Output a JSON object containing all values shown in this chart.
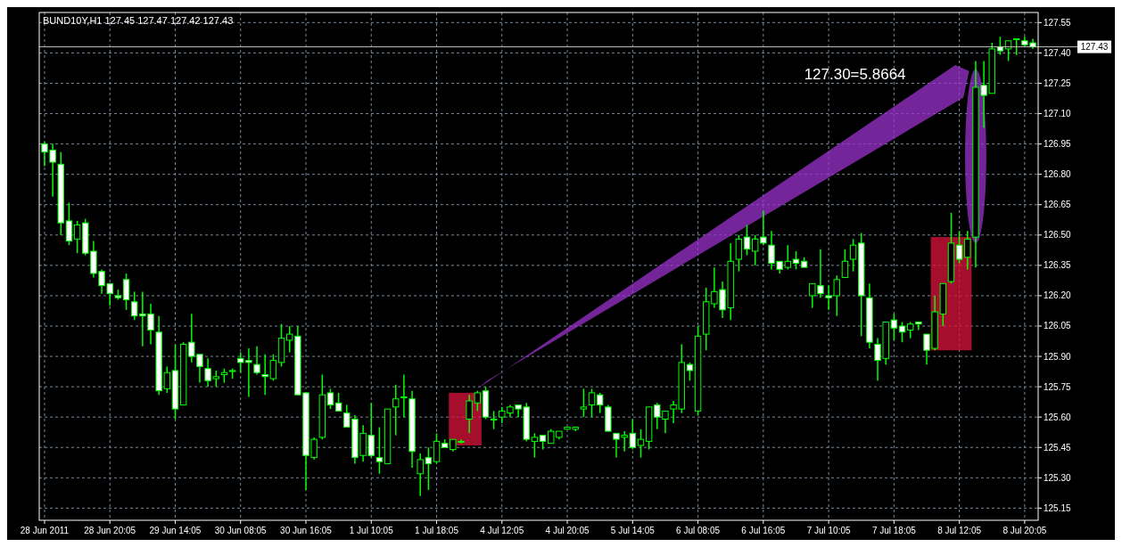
{
  "chart_data": {
    "type": "candlestick",
    "title": "BUND10Y,H1  127.45 127.47 127.42 127.43",
    "categories": [
      "28 Jun 2011",
      null,
      null,
      null,
      null,
      null,
      null,
      null,
      "28 Jun 20:05",
      null,
      null,
      null,
      null,
      null,
      null,
      null,
      "29 Jun 14:05",
      null,
      null,
      null,
      null,
      null,
      null,
      null,
      "30 Jun 08:05",
      null,
      null,
      null,
      null,
      null,
      null,
      null,
      "30 Jun 16:05",
      null,
      null,
      null,
      null,
      null,
      null,
      null,
      "1 Jul 10:05",
      null,
      null,
      null,
      null,
      null,
      null,
      null,
      "1 Jul 18:05",
      null,
      null,
      null,
      null,
      null,
      null,
      null,
      "4 Jul 12:05",
      null,
      null,
      null,
      null,
      null,
      null,
      null,
      "4 Jul 20:05",
      null,
      null,
      null,
      null,
      null,
      null,
      null,
      "5 Jul 14:05",
      null,
      null,
      null,
      null,
      null,
      null,
      null,
      "6 Jul 08:05",
      null,
      null,
      null,
      null,
      null,
      null,
      null,
      "6 Jul 16:05",
      null,
      null,
      null,
      null,
      null,
      null,
      null,
      "7 Jul 10:05",
      null,
      null,
      null,
      null,
      null,
      null,
      null,
      "7 Jul 18:05",
      null,
      null,
      null,
      null,
      null,
      null,
      null,
      "8 Jul 12:05",
      null,
      null,
      null,
      null,
      null,
      null,
      null,
      "8 Jul 20:05",
      null
    ],
    "series": [
      {
        "color": "#00ff00",
        "ohlc": [
          [
            126.95,
            126.96,
            126.84,
            126.91
          ],
          [
            126.92,
            126.95,
            126.69,
            126.86
          ],
          [
            126.85,
            126.91,
            126.5,
            126.56
          ],
          [
            126.57,
            126.66,
            126.45,
            126.47
          ],
          [
            126.48,
            126.57,
            126.41,
            126.55
          ],
          [
            126.56,
            126.58,
            126.4,
            126.41
          ],
          [
            126.42,
            126.47,
            126.29,
            126.31
          ],
          [
            126.32,
            126.33,
            126.21,
            126.25
          ],
          [
            126.26,
            126.26,
            126.15,
            126.21
          ],
          [
            126.2,
            126.23,
            126.18,
            126.19
          ],
          [
            126.28,
            126.31,
            126.13,
            126.18
          ],
          [
            126.17,
            126.22,
            126.08,
            126.1
          ],
          [
            126.11,
            126.22,
            125.95,
            126.1
          ],
          [
            126.11,
            126.16,
            125.96,
            126.03
          ],
          [
            126.02,
            126.1,
            125.71,
            125.73
          ],
          [
            125.74,
            125.85,
            125.72,
            125.82
          ],
          [
            125.83,
            125.96,
            125.59,
            125.64
          ],
          [
            125.66,
            125.97,
            125.66,
            125.96
          ],
          [
            125.97,
            126.11,
            125.87,
            125.9
          ],
          [
            125.91,
            125.91,
            125.77,
            125.85
          ],
          [
            125.84,
            125.89,
            125.75,
            125.78
          ],
          [
            125.79,
            125.83,
            125.75,
            125.8
          ],
          [
            125.81,
            125.84,
            125.77,
            125.82
          ],
          [
            125.83,
            125.84,
            125.79,
            125.83
          ],
          [
            125.89,
            125.92,
            125.82,
            125.87
          ],
          [
            125.88,
            125.94,
            125.7,
            125.87
          ],
          [
            125.86,
            125.95,
            125.81,
            125.82
          ],
          [
            125.81,
            125.91,
            125.71,
            125.8
          ],
          [
            125.79,
            125.91,
            125.78,
            125.88
          ],
          [
            125.87,
            126.06,
            125.85,
            125.99
          ],
          [
            125.98,
            126.05,
            125.92,
            126.01
          ],
          [
            126.0,
            126.05,
            125.71,
            125.71
          ],
          [
            125.72,
            125.72,
            125.24,
            125.41
          ],
          [
            125.4,
            125.5,
            125.39,
            125.49
          ],
          [
            125.5,
            125.81,
            125.49,
            125.71
          ],
          [
            125.72,
            125.74,
            125.64,
            125.66
          ],
          [
            125.67,
            125.72,
            125.63,
            125.63
          ],
          [
            125.62,
            125.66,
            125.55,
            125.55
          ],
          [
            125.59,
            125.61,
            125.37,
            125.4
          ],
          [
            125.41,
            125.56,
            125.38,
            125.52
          ],
          [
            125.51,
            125.67,
            125.4,
            125.41
          ],
          [
            125.4,
            125.55,
            125.32,
            125.38
          ],
          [
            125.37,
            125.64,
            125.37,
            125.64
          ],
          [
            125.65,
            125.76,
            125.51,
            125.69
          ],
          [
            125.7,
            125.81,
            125.6,
            125.7
          ],
          [
            125.69,
            125.73,
            125.35,
            125.43
          ],
          [
            125.32,
            125.42,
            125.21,
            125.39
          ],
          [
            125.4,
            125.45,
            125.24,
            125.37
          ],
          [
            125.38,
            125.52,
            125.37,
            125.48
          ],
          [
            125.47,
            125.49,
            125.45,
            125.45
          ],
          [
            125.44,
            125.49,
            125.43,
            125.49
          ],
          [
            125.48,
            125.49,
            125.47,
            125.48
          ],
          [
            125.59,
            125.71,
            125.52,
            125.68
          ],
          [
            125.67,
            125.73,
            125.63,
            125.72
          ],
          [
            125.73,
            125.75,
            125.59,
            125.6
          ],
          [
            125.59,
            125.63,
            125.54,
            125.59
          ],
          [
            125.6,
            125.65,
            125.57,
            125.63
          ],
          [
            125.62,
            125.66,
            125.6,
            125.65
          ],
          [
            125.66,
            125.66,
            125.6,
            125.64
          ],
          [
            125.65,
            125.67,
            125.48,
            125.49
          ],
          [
            125.48,
            125.52,
            125.4,
            125.5
          ],
          [
            125.51,
            125.51,
            125.44,
            125.48
          ],
          [
            125.47,
            125.54,
            125.47,
            125.53
          ],
          [
            125.5,
            125.53,
            125.49,
            125.53
          ],
          [
            125.54,
            125.55,
            125.54,
            125.55
          ],
          [
            125.54,
            125.55,
            125.53,
            125.55
          ],
          [
            125.64,
            125.74,
            125.6,
            125.65
          ],
          [
            125.66,
            125.74,
            125.6,
            125.72
          ],
          [
            125.71,
            125.72,
            125.62,
            125.66
          ],
          [
            125.65,
            125.66,
            125.53,
            125.53
          ],
          [
            125.52,
            125.52,
            125.4,
            125.49
          ],
          [
            125.5,
            125.53,
            125.43,
            125.51
          ],
          [
            125.52,
            125.59,
            125.44,
            125.45
          ],
          [
            125.46,
            125.54,
            125.4,
            125.49
          ],
          [
            125.48,
            125.65,
            125.44,
            125.65
          ],
          [
            125.66,
            125.67,
            125.54,
            125.6
          ],
          [
            125.59,
            125.63,
            125.52,
            125.63
          ],
          [
            125.64,
            125.68,
            125.57,
            125.66
          ],
          [
            125.64,
            125.96,
            125.62,
            125.87
          ],
          [
            125.86,
            125.87,
            125.78,
            125.83
          ],
          [
            125.63,
            126.05,
            125.61,
            126.0
          ],
          [
            126.01,
            126.24,
            125.93,
            126.17
          ],
          [
            126.16,
            126.34,
            126.14,
            126.22
          ],
          [
            126.23,
            126.27,
            126.09,
            126.13
          ],
          [
            126.14,
            126.46,
            126.08,
            126.37
          ],
          [
            126.38,
            126.5,
            126.32,
            126.48
          ],
          [
            126.49,
            126.55,
            126.4,
            126.43
          ],
          [
            126.42,
            126.5,
            126.35,
            126.48
          ],
          [
            126.49,
            126.62,
            126.45,
            126.46
          ],
          [
            126.45,
            126.52,
            126.33,
            126.36
          ],
          [
            126.37,
            126.37,
            126.31,
            126.33
          ],
          [
            126.34,
            126.45,
            126.33,
            126.37
          ],
          [
            126.38,
            126.42,
            126.33,
            126.36
          ],
          [
            126.37,
            126.39,
            126.34,
            126.34
          ],
          [
            126.2,
            126.26,
            126.14,
            126.26
          ],
          [
            126.25,
            126.43,
            126.19,
            126.21
          ],
          [
            126.2,
            126.25,
            126.13,
            126.19
          ],
          [
            126.2,
            126.3,
            126.1,
            126.28
          ],
          [
            126.29,
            126.43,
            126.29,
            126.37
          ],
          [
            126.38,
            126.48,
            126.32,
            126.45
          ],
          [
            126.46,
            126.51,
            126.0,
            126.2
          ],
          [
            126.19,
            126.26,
            125.94,
            125.97
          ],
          [
            125.96,
            125.99,
            125.78,
            125.88
          ],
          [
            125.89,
            126.07,
            125.86,
            126.07
          ],
          [
            126.08,
            126.11,
            125.98,
            126.04
          ],
          [
            126.05,
            126.07,
            125.97,
            126.02
          ],
          [
            126.03,
            126.07,
            125.99,
            126.06
          ],
          [
            126.07,
            126.07,
            126.03,
            126.06
          ],
          [
            126.01,
            126.01,
            125.86,
            125.93
          ],
          [
            125.94,
            126.2,
            125.93,
            126.12
          ],
          [
            126.11,
            126.26,
            126.05,
            126.26
          ],
          [
            126.27,
            126.61,
            126.26,
            126.46
          ],
          [
            126.45,
            126.52,
            126.36,
            126.38
          ],
          [
            126.39,
            126.52,
            126.33,
            126.48
          ],
          [
            126.49,
            127.36,
            126.34,
            127.23
          ],
          [
            127.24,
            127.36,
            127.03,
            127.19
          ],
          [
            127.2,
            127.45,
            127.2,
            127.42
          ],
          [
            127.43,
            127.48,
            127.39,
            127.41
          ],
          [
            127.42,
            127.46,
            127.36,
            127.46
          ],
          [
            127.47,
            127.47,
            127.39,
            127.47
          ],
          [
            127.46,
            127.48,
            127.43,
            127.44
          ],
          [
            127.45,
            127.47,
            127.42,
            127.43
          ]
        ]
      }
    ],
    "ylim": [
      125.09,
      127.6
    ],
    "yticks": [
      125.15,
      {
        "value": 125.3,
        "label": "125.30"
      },
      125.45,
      {
        "value": 125.6,
        "label": "125.60"
      },
      125.75,
      {
        "value": 125.9,
        "label": "125.90"
      },
      126.05,
      {
        "value": 126.2,
        "label": "126.20"
      },
      126.35,
      {
        "value": 126.5,
        "label": "126.50"
      },
      126.65,
      {
        "value": 126.8,
        "label": "126.80"
      },
      126.95,
      {
        "value": 127.1,
        "label": "127.10"
      },
      127.25,
      {
        "value": 127.4,
        "label": "127.40"
      },
      127.55
    ],
    "grid": true,
    "ref_lines": [
      {
        "axis": "y",
        "value": 127.43,
        "label": "127.43",
        "color": "#c0c0c0"
      }
    ],
    "annotations": [
      "127.30=5.8664"
    ]
  }
}
